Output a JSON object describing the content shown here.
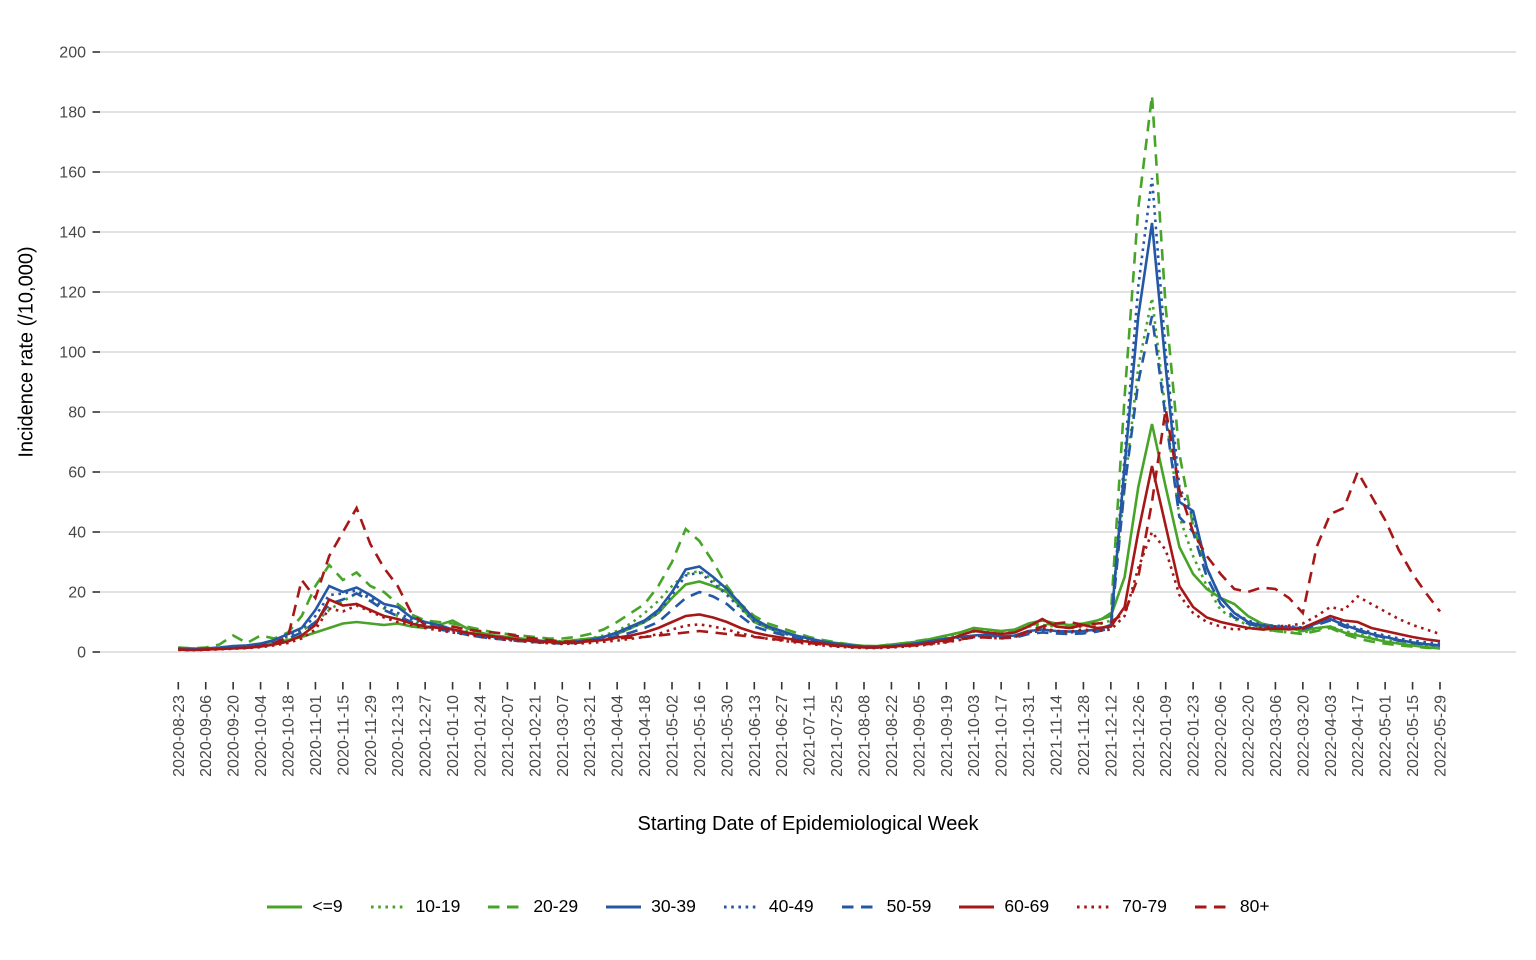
{
  "chart_data": {
    "type": "line",
    "title": "",
    "xlabel": "Starting Date of Epidemiological Week",
    "ylabel": "Incidence rate (/10,000)",
    "ylim": [
      0,
      200
    ],
    "yticks": [
      0,
      20,
      40,
      60,
      80,
      100,
      120,
      140,
      160,
      180,
      200
    ],
    "grid": "horizontal-major-only",
    "legend_position": "bottom",
    "palette": {
      "green": "#48A428",
      "blue": "#2458A5",
      "red": "#A61818"
    },
    "x": [
      "2020-08-23",
      "2020-08-30",
      "2020-09-06",
      "2020-09-13",
      "2020-09-20",
      "2020-09-27",
      "2020-10-04",
      "2020-10-11",
      "2020-10-18",
      "2020-10-25",
      "2020-11-01",
      "2020-11-08",
      "2020-11-15",
      "2020-11-22",
      "2020-11-29",
      "2020-12-06",
      "2020-12-13",
      "2020-12-20",
      "2020-12-27",
      "2021-01-03",
      "2021-01-10",
      "2021-01-17",
      "2021-01-24",
      "2021-01-31",
      "2021-02-07",
      "2021-02-14",
      "2021-02-21",
      "2021-02-28",
      "2021-03-07",
      "2021-03-14",
      "2021-03-21",
      "2021-03-28",
      "2021-04-04",
      "2021-04-11",
      "2021-04-18",
      "2021-04-25",
      "2021-05-02",
      "2021-05-09",
      "2021-05-16",
      "2021-05-23",
      "2021-05-30",
      "2021-06-06",
      "2021-06-13",
      "2021-06-20",
      "2021-06-27",
      "2021-07-04",
      "2021-07-11",
      "2021-07-18",
      "2021-07-25",
      "2021-08-01",
      "2021-08-08",
      "2021-08-15",
      "2021-08-22",
      "2021-08-29",
      "2021-09-05",
      "2021-09-12",
      "2021-09-19",
      "2021-09-26",
      "2021-10-03",
      "2021-10-10",
      "2021-10-17",
      "2021-10-24",
      "2021-10-31",
      "2021-11-07",
      "2021-11-14",
      "2021-11-21",
      "2021-11-28",
      "2021-12-05",
      "2021-12-12",
      "2021-12-19",
      "2021-12-26",
      "2022-01-02",
      "2022-01-09",
      "2022-01-16",
      "2022-01-23",
      "2022-01-30",
      "2022-02-06",
      "2022-02-13",
      "2022-02-20",
      "2022-02-27",
      "2022-03-06",
      "2022-03-13",
      "2022-03-20",
      "2022-03-27",
      "2022-04-03",
      "2022-04-10",
      "2022-04-17",
      "2022-04-24",
      "2022-05-01",
      "2022-05-08",
      "2022-05-15",
      "2022-05-22",
      "2022-05-29"
    ],
    "x_tick_labels": [
      "2020-08-23",
      "2020-09-06",
      "2020-09-20",
      "2020-10-04",
      "2020-10-18",
      "2020-11-01",
      "2020-11-15",
      "2020-11-29",
      "2020-12-13",
      "2020-12-27",
      "2021-01-10",
      "2021-01-24",
      "2021-02-07",
      "2021-02-21",
      "2021-03-07",
      "2021-03-21",
      "2021-04-04",
      "2021-04-18",
      "2021-05-02",
      "2021-05-16",
      "2021-05-30",
      "2021-06-13",
      "2021-06-27",
      "2021-07-11",
      "2021-07-25",
      "2021-08-08",
      "2021-08-22",
      "2021-09-05",
      "2021-09-19",
      "2021-10-03",
      "2021-10-17",
      "2021-10-31",
      "2021-11-14",
      "2021-11-28",
      "2021-12-12",
      "2021-12-26",
      "2022-01-09",
      "2022-01-23",
      "2022-02-06",
      "2022-02-20",
      "2022-03-06",
      "2022-03-20",
      "2022-04-03",
      "2022-04-17",
      "2022-05-01",
      "2022-05-15",
      "2022-05-29"
    ],
    "series": [
      {
        "name": "<=9",
        "color": "#48A428",
        "linestyle": "solid",
        "values": [
          1.5,
          1.2,
          1.0,
          1.2,
          1.5,
          1.8,
          2.2,
          3.0,
          4.0,
          5.0,
          6.5,
          8.0,
          9.5,
          10.0,
          9.5,
          9.0,
          9.5,
          8.5,
          8.0,
          9.0,
          10.5,
          8.0,
          6.5,
          5.5,
          5.0,
          4.5,
          4.0,
          3.5,
          3.5,
          4.0,
          4.5,
          5.0,
          6.0,
          8.0,
          10.0,
          13.0,
          18.0,
          22.5,
          23.5,
          22.0,
          20.0,
          15.0,
          10.0,
          8.0,
          6.5,
          5.5,
          4.5,
          3.5,
          3.0,
          2.5,
          2.0,
          2.0,
          2.5,
          3.0,
          3.5,
          4.5,
          5.5,
          6.5,
          8.0,
          7.5,
          7.0,
          7.5,
          9.5,
          10.5,
          9.5,
          9.0,
          9.5,
          10.5,
          12.0,
          25.0,
          55.0,
          76.0,
          55.0,
          35.0,
          26.0,
          21.0,
          18.0,
          16.0,
          12.0,
          9.5,
          8.5,
          8.0,
          7.0,
          8.0,
          8.5,
          6.5,
          5.5,
          4.5,
          3.5,
          2.8,
          2.2,
          1.6,
          1.2
        ]
      },
      {
        "name": "10-19",
        "color": "#48A428",
        "linestyle": "dotted",
        "values": [
          1.2,
          1.0,
          1.0,
          1.2,
          1.8,
          2.0,
          2.5,
          3.5,
          5.0,
          7.0,
          10.0,
          14.0,
          17.0,
          19.5,
          18.0,
          14.5,
          12.0,
          10.0,
          9.0,
          8.5,
          8.0,
          7.0,
          6.0,
          5.5,
          5.0,
          4.5,
          4.0,
          3.8,
          3.5,
          4.0,
          4.5,
          5.5,
          7.0,
          9.5,
          13.0,
          17.0,
          22.0,
          26.0,
          27.0,
          24.0,
          20.0,
          15.0,
          11.0,
          8.5,
          7.0,
          5.5,
          4.5,
          3.5,
          2.8,
          2.2,
          1.8,
          1.8,
          2.2,
          2.8,
          3.2,
          4.0,
          5.0,
          6.0,
          6.8,
          7.0,
          6.2,
          6.8,
          8.5,
          9.0,
          8.5,
          8.0,
          8.5,
          9.0,
          10.5,
          55.0,
          95.0,
          118.0,
          80.0,
          45.0,
          32.0,
          22.0,
          14.0,
          11.0,
          9.0,
          7.5,
          7.0,
          6.5,
          6.5,
          7.5,
          8.5,
          7.0,
          6.0,
          5.0,
          4.0,
          3.2,
          2.8,
          2.3,
          2.0
        ]
      },
      {
        "name": "20-29",
        "color": "#48A428",
        "linestyle": "dashed",
        "values": [
          1.5,
          1.2,
          1.5,
          2.5,
          5.5,
          3.0,
          5.5,
          4.5,
          6.5,
          12.0,
          22.0,
          29.0,
          24.0,
          26.5,
          22.0,
          20.0,
          16.0,
          12.5,
          10.5,
          10.0,
          9.5,
          8.5,
          7.5,
          6.5,
          6.0,
          5.5,
          5.0,
          4.5,
          4.5,
          5.0,
          6.0,
          7.5,
          10.0,
          13.0,
          16.0,
          22.0,
          30.0,
          41.0,
          37.0,
          30.0,
          22.0,
          16.0,
          12.0,
          9.5,
          8.0,
          6.5,
          5.0,
          4.0,
          3.2,
          2.5,
          2.0,
          2.0,
          2.5,
          3.0,
          3.8,
          4.5,
          5.5,
          6.5,
          7.2,
          7.5,
          6.8,
          7.2,
          9.0,
          9.5,
          9.0,
          8.5,
          9.0,
          10.0,
          13.0,
          85.0,
          148.0,
          185.5,
          115.0,
          66.0,
          42.0,
          28.0,
          18.0,
          13.0,
          10.0,
          8.0,
          7.0,
          6.5,
          6.0,
          7.0,
          8.0,
          6.0,
          4.5,
          3.5,
          2.8,
          2.2,
          1.8,
          1.4,
          1.2
        ]
      },
      {
        "name": "30-39",
        "color": "#2458A5",
        "linestyle": "solid",
        "values": [
          1.2,
          1.0,
          1.2,
          1.5,
          2.0,
          2.2,
          2.8,
          4.0,
          6.0,
          8.0,
          14.0,
          22.0,
          20.0,
          21.5,
          19.0,
          16.0,
          15.0,
          11.5,
          10.0,
          9.0,
          7.5,
          6.5,
          5.5,
          5.0,
          4.5,
          4.0,
          3.8,
          3.5,
          3.2,
          3.5,
          4.0,
          5.0,
          6.5,
          8.5,
          10.5,
          14.0,
          20.0,
          27.5,
          28.5,
          25.0,
          21.0,
          16.0,
          11.0,
          8.5,
          7.0,
          5.5,
          4.5,
          3.5,
          2.8,
          2.2,
          1.8,
          1.8,
          2.0,
          2.5,
          3.0,
          3.8,
          4.5,
          5.0,
          5.5,
          5.8,
          5.2,
          5.5,
          7.0,
          7.5,
          7.0,
          6.8,
          7.0,
          7.5,
          9.0,
          62.0,
          112.0,
          143.0,
          95.0,
          50.0,
          47.0,
          28.0,
          18.0,
          13.0,
          10.0,
          8.8,
          8.5,
          8.2,
          8.0,
          9.5,
          11.0,
          9.0,
          7.5,
          6.0,
          5.0,
          4.0,
          3.2,
          2.6,
          2.2
        ]
      },
      {
        "name": "40-49",
        "color": "#2458A5",
        "linestyle": "dotted",
        "values": [
          1.0,
          1.0,
          1.2,
          1.5,
          1.8,
          2.0,
          2.5,
          3.5,
          5.5,
          7.5,
          12.0,
          19.0,
          19.5,
          20.5,
          18.0,
          15.0,
          13.0,
          11.0,
          9.5,
          8.5,
          7.2,
          6.2,
          5.2,
          4.8,
          4.2,
          3.8,
          3.5,
          3.2,
          3.0,
          3.2,
          3.8,
          4.8,
          6.0,
          8.0,
          10.0,
          13.0,
          19.0,
          25.5,
          26.5,
          23.0,
          19.0,
          14.5,
          10.0,
          8.0,
          6.5,
          5.0,
          4.0,
          3.2,
          2.5,
          2.0,
          1.6,
          1.6,
          1.9,
          2.3,
          2.8,
          3.5,
          4.2,
          4.8,
          5.2,
          5.5,
          5.0,
          5.2,
          6.5,
          7.0,
          6.8,
          6.5,
          6.8,
          7.2,
          8.5,
          65.0,
          122.0,
          158.0,
          100.0,
          55.0,
          45.0,
          28.0,
          18.0,
          13.0,
          10.5,
          9.0,
          8.8,
          8.5,
          8.2,
          9.8,
          11.5,
          9.5,
          8.0,
          6.5,
          5.5,
          4.5,
          3.8,
          3.2,
          2.8
        ]
      },
      {
        "name": "50-59",
        "color": "#2458A5",
        "linestyle": "dashed",
        "values": [
          1.0,
          0.9,
          1.1,
          1.4,
          1.6,
          1.8,
          2.2,
          3.0,
          4.5,
          6.5,
          10.0,
          16.0,
          17.5,
          19.5,
          17.0,
          14.0,
          12.0,
          10.0,
          8.5,
          7.5,
          6.8,
          5.8,
          5.0,
          4.5,
          4.0,
          3.6,
          3.3,
          3.0,
          2.8,
          3.0,
          3.5,
          4.2,
          5.2,
          6.5,
          8.0,
          10.0,
          14.0,
          18.0,
          20.0,
          18.5,
          16.0,
          12.0,
          8.5,
          7.0,
          5.8,
          4.6,
          3.8,
          3.0,
          2.4,
          1.9,
          1.5,
          1.5,
          1.8,
          2.2,
          2.6,
          3.2,
          3.8,
          4.3,
          4.8,
          5.0,
          4.6,
          4.8,
          6.0,
          6.5,
          6.2,
          6.0,
          6.2,
          6.8,
          8.0,
          55.0,
          90.0,
          112.0,
          78.0,
          45.0,
          40.0,
          25.0,
          16.0,
          11.5,
          9.5,
          8.2,
          8.0,
          7.8,
          7.6,
          9.0,
          10.5,
          8.5,
          7.0,
          5.8,
          4.8,
          3.8,
          3.0,
          2.5,
          2.1
        ]
      },
      {
        "name": "60-69",
        "color": "#A61818",
        "linestyle": "solid",
        "values": [
          0.8,
          0.7,
          0.8,
          1.0,
          1.2,
          1.4,
          1.8,
          2.5,
          3.5,
          5.5,
          9.0,
          17.5,
          15.5,
          16.0,
          14.0,
          12.0,
          11.0,
          9.5,
          8.5,
          8.0,
          7.5,
          6.5,
          5.8,
          5.2,
          4.6,
          4.0,
          3.6,
          3.3,
          3.0,
          3.2,
          3.6,
          4.0,
          4.8,
          5.5,
          6.5,
          8.0,
          10.0,
          12.0,
          12.5,
          11.5,
          10.0,
          8.0,
          6.5,
          5.5,
          4.8,
          4.0,
          3.4,
          2.8,
          2.2,
          1.8,
          1.5,
          1.5,
          1.8,
          2.1,
          2.5,
          3.2,
          4.0,
          5.5,
          7.0,
          6.5,
          6.0,
          6.5,
          8.5,
          11.0,
          8.5,
          8.0,
          9.0,
          8.0,
          8.5,
          15.0,
          40.0,
          62.0,
          42.0,
          22.0,
          15.0,
          11.5,
          10.0,
          9.0,
          8.0,
          7.5,
          7.8,
          7.5,
          8.0,
          10.0,
          12.0,
          10.5,
          10.0,
          8.0,
          7.0,
          6.0,
          5.0,
          4.2,
          3.6
        ]
      },
      {
        "name": "70-79",
        "color": "#A61818",
        "linestyle": "dotted",
        "values": [
          0.7,
          0.6,
          0.7,
          0.9,
          1.1,
          1.3,
          1.6,
          2.2,
          3.0,
          4.5,
          7.5,
          14.5,
          13.5,
          15.5,
          13.5,
          11.5,
          10.0,
          9.0,
          8.0,
          7.2,
          6.5,
          5.8,
          5.0,
          4.5,
          4.0,
          3.6,
          3.2,
          2.9,
          2.7,
          2.8,
          3.0,
          3.4,
          3.8,
          4.4,
          5.0,
          6.0,
          7.5,
          8.8,
          9.2,
          8.5,
          7.5,
          6.2,
          5.2,
          4.4,
          3.8,
          3.2,
          2.7,
          2.2,
          1.8,
          1.5,
          1.3,
          1.3,
          1.5,
          1.8,
          2.1,
          2.6,
          3.2,
          4.0,
          5.0,
          4.8,
          4.5,
          5.0,
          6.5,
          8.0,
          7.0,
          6.8,
          7.5,
          7.0,
          7.5,
          12.0,
          28.0,
          40.0,
          34.0,
          19.0,
          13.0,
          10.0,
          8.5,
          7.5,
          7.8,
          8.0,
          8.5,
          8.8,
          9.5,
          12.0,
          15.0,
          14.0,
          18.5,
          16.0,
          13.5,
          11.0,
          9.0,
          7.5,
          6.0
        ]
      },
      {
        "name": "80+",
        "color": "#A61818",
        "linestyle": "dashed",
        "values": [
          0.8,
          0.6,
          0.8,
          1.0,
          1.3,
          1.5,
          2.0,
          3.0,
          5.0,
          24.0,
          18.0,
          32.0,
          40.0,
          48.0,
          36.0,
          28.0,
          22.0,
          13.0,
          9.0,
          8.0,
          8.5,
          7.5,
          7.0,
          6.5,
          6.0,
          5.0,
          4.5,
          4.0,
          3.5,
          3.5,
          3.8,
          4.0,
          4.5,
          4.8,
          5.0,
          5.5,
          6.0,
          6.5,
          7.0,
          6.5,
          6.0,
          5.5,
          5.0,
          4.5,
          4.0,
          3.5,
          3.0,
          2.5,
          2.0,
          1.7,
          1.5,
          1.5,
          1.7,
          2.0,
          2.3,
          2.8,
          3.4,
          4.2,
          5.0,
          4.8,
          4.6,
          5.2,
          7.0,
          8.5,
          9.5,
          10.0,
          9.0,
          9.5,
          10.0,
          13.0,
          25.0,
          50.0,
          81.0,
          54.0,
          40.0,
          32.0,
          26.0,
          21.0,
          20.0,
          21.5,
          21.0,
          18.0,
          13.0,
          35.0,
          46.0,
          48.0,
          60.0,
          52.0,
          44.0,
          34.0,
          26.0,
          19.5,
          13.5
        ]
      }
    ]
  }
}
